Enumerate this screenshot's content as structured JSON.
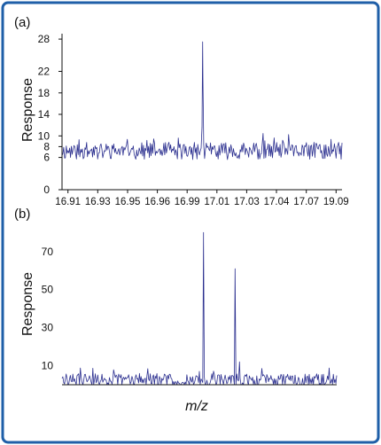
{
  "colors": {
    "frame": "#1f5fa8",
    "trace": "#2b2f8f",
    "axis": "#111111",
    "text": "#111111"
  },
  "chart_data": [
    {
      "panel_label": "(a)",
      "type": "line",
      "ylabel": "Response",
      "xlabel": "",
      "ylim": [
        0,
        29
      ],
      "yticks": [
        0,
        6,
        8,
        10,
        14,
        18,
        22,
        28
      ],
      "ytick_labels": [
        "0",
        "6",
        "8",
        "10",
        "14",
        "18",
        "22",
        "28"
      ],
      "xtick_labels": [
        "16.91",
        "16.93",
        "16.95",
        "16.96",
        "16.99",
        "17.01",
        "17.03",
        "17.04",
        "17.07",
        "19.09"
      ],
      "xtick_positions": [
        0,
        1,
        2,
        3,
        4,
        5,
        6,
        7,
        8,
        9
      ],
      "xlim": [
        -0.2,
        9.2
      ],
      "baseline": 7.2,
      "noise": 1.0,
      "noise_seed": 11,
      "samples": 330,
      "peaks": [
        {
          "x": 4.52,
          "height": 27.5
        }
      ]
    },
    {
      "panel_label": "(b)",
      "type": "line",
      "ylabel": "Response",
      "xlabel": "m/z",
      "ylim": [
        0,
        82
      ],
      "yticks": [
        10,
        30,
        50,
        70
      ],
      "ytick_labels": [
        "10",
        "30",
        "50",
        "70"
      ],
      "xtick_labels": [],
      "xlim": [
        0,
        100
      ],
      "baseline": 2.5,
      "noise": 2.2,
      "noise_seed": 29,
      "samples": 330,
      "peaks": [
        {
          "x": 51.5,
          "height": 80
        },
        {
          "x": 63.0,
          "height": 61
        },
        {
          "x": 64.6,
          "height": 12
        }
      ]
    }
  ]
}
